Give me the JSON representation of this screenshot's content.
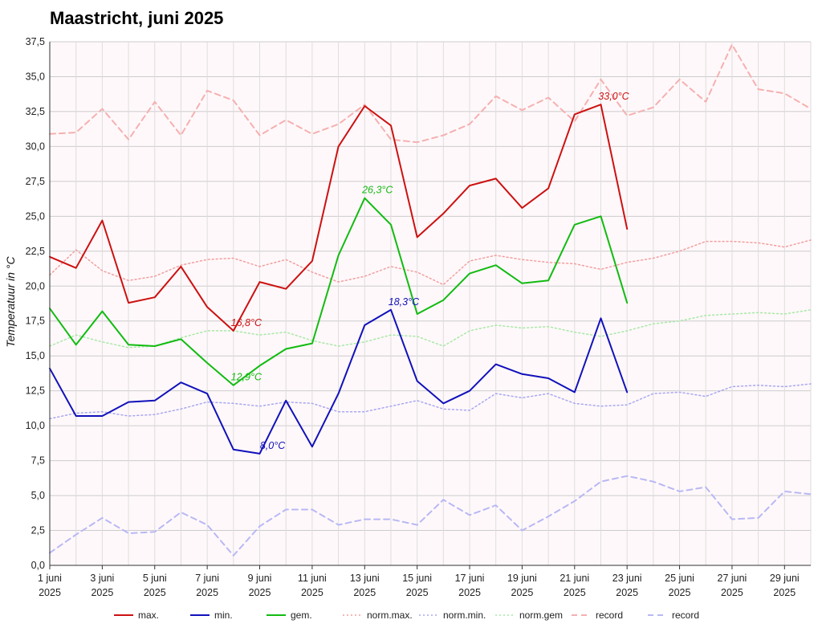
{
  "page": {
    "title": "Maastricht, juni 2025"
  },
  "chart_data": {
    "type": "line",
    "title": "Maastricht, juni 2025",
    "xlabel": "",
    "ylabel": "Temperatuur in °C",
    "ylim": [
      0,
      37.5
    ],
    "y_ticks": [
      "0,0",
      "2,5",
      "5,0",
      "7,5",
      "10,0",
      "12,5",
      "15,0",
      "17,5",
      "20,0",
      "22,5",
      "25,0",
      "27,5",
      "30,0",
      "32,5",
      "35,0",
      "37,5"
    ],
    "x_range": [
      1,
      30
    ],
    "x_ticks": [
      {
        "day": 1,
        "line1": "1 juni",
        "line2": "2025"
      },
      {
        "day": 3,
        "line1": "3 juni",
        "line2": "2025"
      },
      {
        "day": 5,
        "line1": "5 juni",
        "line2": "2025"
      },
      {
        "day": 7,
        "line1": "7 juni",
        "line2": "2025"
      },
      {
        "day": 9,
        "line1": "9 juni",
        "line2": "2025"
      },
      {
        "day": 11,
        "line1": "11 juni",
        "line2": "2025"
      },
      {
        "day": 13,
        "line1": "13 juni",
        "line2": "2025"
      },
      {
        "day": 15,
        "line1": "15 juni",
        "line2": "2025"
      },
      {
        "day": 17,
        "line1": "17 juni",
        "line2": "2025"
      },
      {
        "day": 19,
        "line1": "19 juni",
        "line2": "2025"
      },
      {
        "day": 21,
        "line1": "21 juni",
        "line2": "2025"
      },
      {
        "day": 23,
        "line1": "23 juni",
        "line2": "2025"
      },
      {
        "day": 25,
        "line1": "25 juni",
        "line2": "2025"
      },
      {
        "day": 27,
        "line1": "27 juni",
        "line2": "2025"
      },
      {
        "day": 29,
        "line1": "29 juni",
        "line2": "2025"
      }
    ],
    "grid": true,
    "legend_position": "bottom",
    "series": [
      {
        "name": "max.",
        "color": "#cc1111",
        "style": "solid",
        "width": 2,
        "x": [
          1,
          2,
          3,
          4,
          5,
          6,
          7,
          8,
          9,
          10,
          11,
          12,
          13,
          14,
          15,
          16,
          17,
          18,
          19,
          20,
          21,
          22,
          23
        ],
        "values": [
          22.1,
          21.3,
          24.7,
          18.8,
          19.2,
          21.4,
          18.5,
          16.8,
          20.3,
          19.8,
          21.8,
          30.0,
          32.9,
          31.5,
          23.5,
          25.2,
          27.2,
          27.7,
          25.6,
          27.0,
          32.3,
          33.0,
          24.1
        ]
      },
      {
        "name": "min.",
        "color": "#1111bb",
        "style": "solid",
        "width": 2,
        "x": [
          1,
          2,
          3,
          4,
          5,
          6,
          7,
          8,
          9,
          10,
          11,
          12,
          13,
          14,
          15,
          16,
          17,
          18,
          19,
          20,
          21,
          22,
          23
        ],
        "values": [
          14.1,
          10.7,
          10.7,
          11.7,
          11.8,
          13.1,
          12.3,
          8.3,
          8.0,
          11.8,
          8.5,
          12.3,
          17.2,
          18.3,
          13.2,
          11.6,
          12.5,
          14.4,
          13.7,
          13.4,
          12.4,
          17.7,
          12.4
        ]
      },
      {
        "name": "gem.",
        "color": "#11bb11",
        "style": "solid",
        "width": 2,
        "x": [
          1,
          2,
          3,
          4,
          5,
          6,
          7,
          8,
          9,
          10,
          11,
          12,
          13,
          14,
          15,
          16,
          17,
          18,
          19,
          20,
          21,
          22,
          23
        ],
        "values": [
          18.4,
          15.8,
          18.2,
          15.8,
          15.7,
          16.2,
          14.5,
          12.9,
          14.3,
          15.5,
          15.9,
          22.2,
          26.3,
          24.4,
          18.0,
          19.0,
          20.9,
          21.5,
          20.2,
          20.4,
          24.4,
          25.0,
          18.8
        ]
      },
      {
        "name": "norm.max.",
        "color": "#f0a0a0",
        "style": "dotted",
        "width": 1.5,
        "x": [
          1,
          2,
          3,
          4,
          5,
          6,
          7,
          8,
          9,
          10,
          11,
          12,
          13,
          14,
          15,
          16,
          17,
          18,
          19,
          20,
          21,
          22,
          23,
          24,
          25,
          26,
          27,
          28,
          29,
          30
        ],
        "values": [
          20.8,
          22.6,
          21.1,
          20.4,
          20.7,
          21.5,
          21.9,
          22.0,
          21.4,
          21.9,
          21.0,
          20.3,
          20.7,
          21.4,
          21.0,
          20.1,
          21.8,
          22.2,
          21.9,
          21.7,
          21.6,
          21.2,
          21.7,
          22.0,
          22.5,
          23.2,
          23.2,
          23.1,
          22.8,
          23.3
        ]
      },
      {
        "name": "norm.min.",
        "color": "#a8a8f0",
        "style": "dotted",
        "width": 1.5,
        "x": [
          1,
          2,
          3,
          4,
          5,
          6,
          7,
          8,
          9,
          10,
          11,
          12,
          13,
          14,
          15,
          16,
          17,
          18,
          19,
          20,
          21,
          22,
          23,
          24,
          25,
          26,
          27,
          28,
          29,
          30
        ],
        "values": [
          10.5,
          10.9,
          11.0,
          10.7,
          10.8,
          11.2,
          11.7,
          11.6,
          11.4,
          11.7,
          11.6,
          11.0,
          11.0,
          11.4,
          11.8,
          11.2,
          11.1,
          12.3,
          12.0,
          12.3,
          11.6,
          11.4,
          11.5,
          12.3,
          12.4,
          12.1,
          12.8,
          12.9,
          12.8,
          13.0
        ]
      },
      {
        "name": "norm.gem",
        "color": "#a8e8a8",
        "style": "dotted",
        "width": 1.5,
        "x": [
          1,
          2,
          3,
          4,
          5,
          6,
          7,
          8,
          9,
          10,
          11,
          12,
          13,
          14,
          15,
          16,
          17,
          18,
          19,
          20,
          21,
          22,
          23,
          24,
          25,
          26,
          27,
          28,
          29,
          30
        ],
        "values": [
          15.7,
          16.5,
          16.0,
          15.6,
          15.7,
          16.3,
          16.8,
          16.8,
          16.5,
          16.7,
          16.1,
          15.7,
          16.0,
          16.5,
          16.4,
          15.7,
          16.8,
          17.2,
          17.0,
          17.1,
          16.7,
          16.4,
          16.8,
          17.3,
          17.5,
          17.9,
          18.0,
          18.1,
          18.0,
          18.3
        ]
      },
      {
        "name": "record",
        "color": "#f5b0b0",
        "style": "dashed",
        "width": 2,
        "x": [
          1,
          2,
          3,
          4,
          5,
          6,
          7,
          8,
          9,
          10,
          11,
          12,
          13,
          14,
          15,
          16,
          17,
          18,
          19,
          20,
          21,
          22,
          23,
          24,
          25,
          26,
          27,
          28,
          29,
          30
        ],
        "values": [
          30.9,
          31.0,
          32.7,
          30.5,
          33.2,
          30.8,
          34.0,
          33.3,
          30.8,
          31.9,
          30.9,
          31.6,
          33.0,
          30.5,
          30.3,
          30.8,
          31.6,
          33.6,
          32.6,
          33.5,
          31.8,
          34.8,
          32.2,
          32.8,
          34.8,
          33.2,
          37.3,
          34.1,
          33.8,
          32.7
        ]
      },
      {
        "name": "record",
        "color": "#b8b8f5",
        "style": "dashed",
        "width": 2,
        "x": [
          1,
          2,
          3,
          4,
          5,
          6,
          7,
          8,
          9,
          10,
          11,
          12,
          13,
          14,
          15,
          16,
          17,
          18,
          19,
          20,
          21,
          22,
          23,
          24,
          25,
          26,
          27,
          28,
          29,
          30
        ],
        "values": [
          0.9,
          2.2,
          3.4,
          2.3,
          2.4,
          3.8,
          2.9,
          0.7,
          2.8,
          4.0,
          4.0,
          2.9,
          3.3,
          3.3,
          2.9,
          4.7,
          3.6,
          4.3,
          2.5,
          3.5,
          4.6,
          6.0,
          6.4,
          6.0,
          5.3,
          5.6,
          3.3,
          3.4,
          5.3,
          5.1
        ]
      }
    ],
    "annotations": [
      {
        "text": "33,0°C",
        "day": 22,
        "value": 33.0,
        "color": "#cc1111"
      },
      {
        "text": "26,3°C",
        "day": 13,
        "value": 26.3,
        "color": "#11bb11"
      },
      {
        "text": "18,3°C",
        "day": 14,
        "value": 18.3,
        "color": "#1111bb"
      },
      {
        "text": "16,8°C",
        "day": 8,
        "value": 16.8,
        "color": "#cc1111"
      },
      {
        "text": "12,9°C",
        "day": 8,
        "value": 12.9,
        "color": "#11bb11"
      },
      {
        "text": "8,0°C",
        "day": 9,
        "value": 8.0,
        "color": "#1111bb"
      }
    ]
  }
}
